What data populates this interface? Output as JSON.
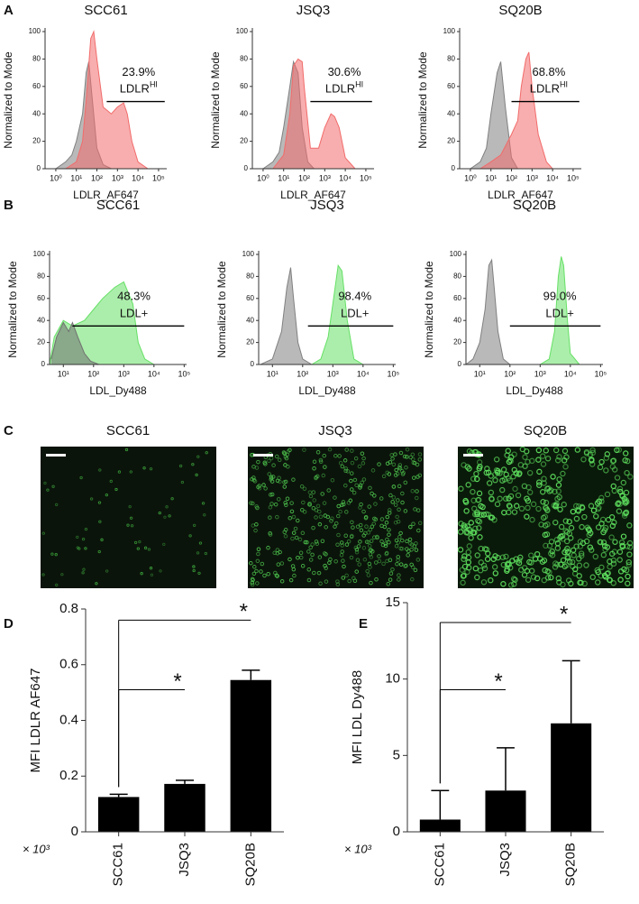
{
  "chart_data": [
    {
      "type": "area",
      "title": "SCC61",
      "x_label": "LDLR_AF647",
      "y_label": "Normalized to Mode",
      "log_x": true,
      "xlim": [
        0.3,
        250000
      ],
      "xticks": [
        {
          "value": 1,
          "label": "10⁰"
        },
        {
          "value": 10,
          "label": "10¹"
        },
        {
          "value": 100,
          "label": "10²"
        },
        {
          "value": 1000,
          "label": "10³"
        },
        {
          "value": 10000,
          "label": "10⁴"
        },
        {
          "value": 100000,
          "label": "10⁵"
        }
      ],
      "ylim": [
        0,
        100
      ],
      "yticks": [
        0,
        20,
        40,
        60,
        80,
        100
      ],
      "series": [
        {
          "color": "#808080",
          "x": [
            1,
            3,
            6,
            10,
            20,
            30,
            40,
            60,
            100,
            200,
            500
          ],
          "values": [
            0,
            5,
            10,
            20,
            40,
            70,
            78,
            50,
            15,
            3,
            0
          ]
        },
        {
          "color": "#f26b6b",
          "x": [
            3,
            10,
            20,
            30,
            50,
            70,
            100,
            200,
            500,
            1000,
            2000,
            3000,
            5000,
            10000,
            30000
          ],
          "values": [
            0,
            5,
            20,
            50,
            95,
            100,
            80,
            45,
            40,
            45,
            48,
            40,
            20,
            5,
            0
          ]
        }
      ],
      "gate": {
        "x": [
          300,
          200000
        ],
        "y": 49,
        "percent": "23.9%",
        "label": "LDLR",
        "label_sup": "HI"
      }
    },
    {
      "type": "area",
      "title": "JSQ3",
      "x_label": "LDLR_AF647",
      "y_label": "Normalized to Mode",
      "log_x": true,
      "xlim": [
        0.3,
        250000
      ],
      "xticks": [
        {
          "value": 1,
          "label": "10⁰"
        },
        {
          "value": 10,
          "label": "10¹"
        },
        {
          "value": 100,
          "label": "10²"
        },
        {
          "value": 1000,
          "label": "10³"
        },
        {
          "value": 10000,
          "label": "10⁴"
        },
        {
          "value": 100000,
          "label": "10⁵"
        }
      ],
      "ylim": [
        0,
        100
      ],
      "yticks": [
        0,
        20,
        40,
        60,
        80,
        100
      ],
      "series": [
        {
          "color": "#808080",
          "x": [
            1,
            3,
            6,
            10,
            20,
            30,
            50,
            80,
            150,
            300
          ],
          "values": [
            0,
            5,
            12,
            30,
            60,
            78,
            70,
            30,
            5,
            0
          ]
        },
        {
          "color": "#f26b6b",
          "x": [
            3,
            10,
            20,
            30,
            50,
            80,
            100,
            200,
            500,
            1000,
            2000,
            3000,
            5000,
            10000,
            30000
          ],
          "values": [
            0,
            10,
            40,
            75,
            80,
            78,
            60,
            15,
            15,
            30,
            40,
            38,
            30,
            8,
            0
          ]
        }
      ],
      "gate": {
        "x": [
          200,
          200000
        ],
        "y": 49,
        "percent": "30.6%",
        "label": "LDLR",
        "label_sup": "HI"
      }
    },
    {
      "type": "area",
      "title": "SQ20B",
      "x_label": "LDLR_AF647",
      "y_label": "Normalized to Mode",
      "log_x": true,
      "xlim": [
        0.3,
        250000
      ],
      "xticks": [
        {
          "value": 1,
          "label": "10⁰"
        },
        {
          "value": 10,
          "label": "10¹"
        },
        {
          "value": 100,
          "label": "10²"
        },
        {
          "value": 1000,
          "label": "10³"
        },
        {
          "value": 10000,
          "label": "10⁴"
        },
        {
          "value": 100000,
          "label": "10⁵"
        }
      ],
      "ylim": [
        0,
        100
      ],
      "yticks": [
        0,
        20,
        40,
        60,
        80,
        100
      ],
      "series": [
        {
          "color": "#808080",
          "x": [
            1,
            3,
            6,
            10,
            20,
            30,
            50,
            100,
            200
          ],
          "values": [
            0,
            5,
            15,
            40,
            70,
            78,
            45,
            8,
            0
          ]
        },
        {
          "color": "#f26b6b",
          "x": [
            3,
            10,
            30,
            100,
            200,
            300,
            500,
            700,
            1000,
            2000,
            5000,
            10000
          ],
          "values": [
            0,
            5,
            10,
            25,
            35,
            60,
            80,
            85,
            60,
            25,
            5,
            0
          ]
        }
      ],
      "gate": {
        "x": [
          100,
          200000
        ],
        "y": 49,
        "percent": "68.8%",
        "label": "LDLR",
        "label_sup": "HI"
      }
    },
    {
      "type": "area",
      "title": "SCC61",
      "x_label": "LDL_Dy488",
      "y_label": "Normalized to Mode",
      "log_x": true,
      "xlim": [
        3.5,
        120000
      ],
      "xticks": [
        {
          "value": 10,
          "label": "10¹"
        },
        {
          "value": 100,
          "label": "10²"
        },
        {
          "value": 1000,
          "label": "10³"
        },
        {
          "value": 10000,
          "label": "10⁴"
        },
        {
          "value": 100000,
          "label": "10⁵"
        }
      ],
      "ylim": [
        0,
        100
      ],
      "yticks": [
        0,
        20,
        40,
        60,
        80,
        100
      ],
      "series": [
        {
          "color": "#66e066",
          "x": [
            3.5,
            5,
            10,
            20,
            50,
            100,
            200,
            500,
            1000,
            2000,
            3000,
            5000,
            10000
          ],
          "values": [
            0,
            25,
            40,
            35,
            40,
            50,
            60,
            70,
            75,
            55,
            20,
            5,
            0
          ]
        },
        {
          "color": "#707070",
          "x": [
            4,
            6,
            10,
            15,
            20,
            30,
            50,
            80,
            150
          ],
          "values": [
            5,
            25,
            38,
            30,
            38,
            25,
            10,
            3,
            0
          ]
        }
      ],
      "gate": {
        "x": [
          20,
          100000
        ],
        "y": 35,
        "percent": "48.3%",
        "label": "LDL+"
      }
    },
    {
      "type": "area",
      "title": "JSQ3",
      "x_label": "LDL_Dy488",
      "y_label": "Normalized to Mode",
      "log_x": true,
      "xlim": [
        3.5,
        120000
      ],
      "xticks": [
        {
          "value": 10,
          "label": "10¹"
        },
        {
          "value": 100,
          "label": "10²"
        },
        {
          "value": 1000,
          "label": "10³"
        },
        {
          "value": 10000,
          "label": "10⁴"
        },
        {
          "value": 100000,
          "label": "10⁵"
        }
      ],
      "ylim": [
        0,
        100
      ],
      "yticks": [
        0,
        20,
        40,
        60,
        80,
        100
      ],
      "series": [
        {
          "color": "#808080",
          "x": [
            4,
            10,
            20,
            30,
            40,
            50,
            70,
            100,
            200
          ],
          "values": [
            0,
            5,
            30,
            70,
            88,
            60,
            20,
            5,
            0
          ]
        },
        {
          "color": "#66e066",
          "x": [
            200,
            400,
            700,
            1000,
            1500,
            2000,
            3000,
            5000,
            10000
          ],
          "values": [
            0,
            5,
            25,
            55,
            90,
            85,
            40,
            5,
            0
          ]
        }
      ],
      "gate": {
        "x": [
          150,
          100000
        ],
        "y": 35,
        "percent": "98.4%",
        "label": "LDL+"
      }
    },
    {
      "type": "area",
      "title": "SQ20B",
      "x_label": "LDL_Dy488",
      "y_label": "Normalized to Mode",
      "log_x": true,
      "xlim": [
        3.5,
        120000
      ],
      "xticks": [
        {
          "value": 10,
          "label": "10¹"
        },
        {
          "value": 100,
          "label": "10²"
        },
        {
          "value": 1000,
          "label": "10³"
        },
        {
          "value": 10000,
          "label": "10⁴"
        },
        {
          "value": 100000,
          "label": "10⁵"
        }
      ],
      "ylim": [
        0,
        100
      ],
      "yticks": [
        0,
        20,
        40,
        60,
        80,
        100
      ],
      "series": [
        {
          "color": "#808080",
          "x": [
            3.5,
            6,
            10,
            15,
            20,
            25,
            30,
            40,
            60,
            100
          ],
          "values": [
            0,
            5,
            20,
            50,
            90,
            95,
            70,
            30,
            5,
            0
          ]
        },
        {
          "color": "#66e066",
          "x": [
            1000,
            2000,
            3000,
            4000,
            5000,
            6000,
            8000,
            10000,
            20000
          ],
          "values": [
            0,
            5,
            30,
            80,
            98,
            90,
            40,
            10,
            0
          ]
        }
      ],
      "gate": {
        "x": [
          100,
          100000
        ],
        "y": 35,
        "percent": "99.0%",
        "label": "LDL+"
      }
    },
    {
      "type": "bar",
      "y_label": "MFI LDLR AF647",
      "multiplier": "× 10³",
      "categories": [
        "SCC61",
        "JSQ3",
        "SQ20B"
      ],
      "values": [
        0.125,
        0.172,
        0.545
      ],
      "errors": [
        0.01,
        0.013,
        0.035
      ],
      "color": "#000000",
      "ylim": [
        0,
        0.8
      ],
      "yticks": [
        0,
        0.2,
        0.4,
        0.6,
        0.8
      ],
      "significance": [
        {
          "from": 0,
          "to": 2,
          "y": 0.76,
          "label": "*"
        },
        {
          "from": 0,
          "to": 1,
          "y": 0.51,
          "label": "*"
        }
      ]
    },
    {
      "type": "bar",
      "y_label": "MFI LDL Dy488",
      "multiplier": "× 10³",
      "categories": [
        "SCC61",
        "JSQ3",
        "SQ20B"
      ],
      "values": [
        0.8,
        2.7,
        7.1
      ],
      "errors": [
        1.9,
        2.8,
        4.1
      ],
      "color": "#000000",
      "ylim": [
        0,
        15
      ],
      "yticks": [
        0,
        5,
        10,
        15
      ],
      "significance": [
        {
          "from": 0,
          "to": 2,
          "y": 13.7,
          "label": "*"
        },
        {
          "from": 0,
          "to": 1,
          "y": 9.3,
          "label": "*"
        }
      ]
    }
  ],
  "panel_labels": [
    "A",
    "B",
    "C",
    "D",
    "E"
  ],
  "micrographs": {
    "titles": [
      "SCC61",
      "JSQ3",
      "SQ20B"
    ]
  }
}
